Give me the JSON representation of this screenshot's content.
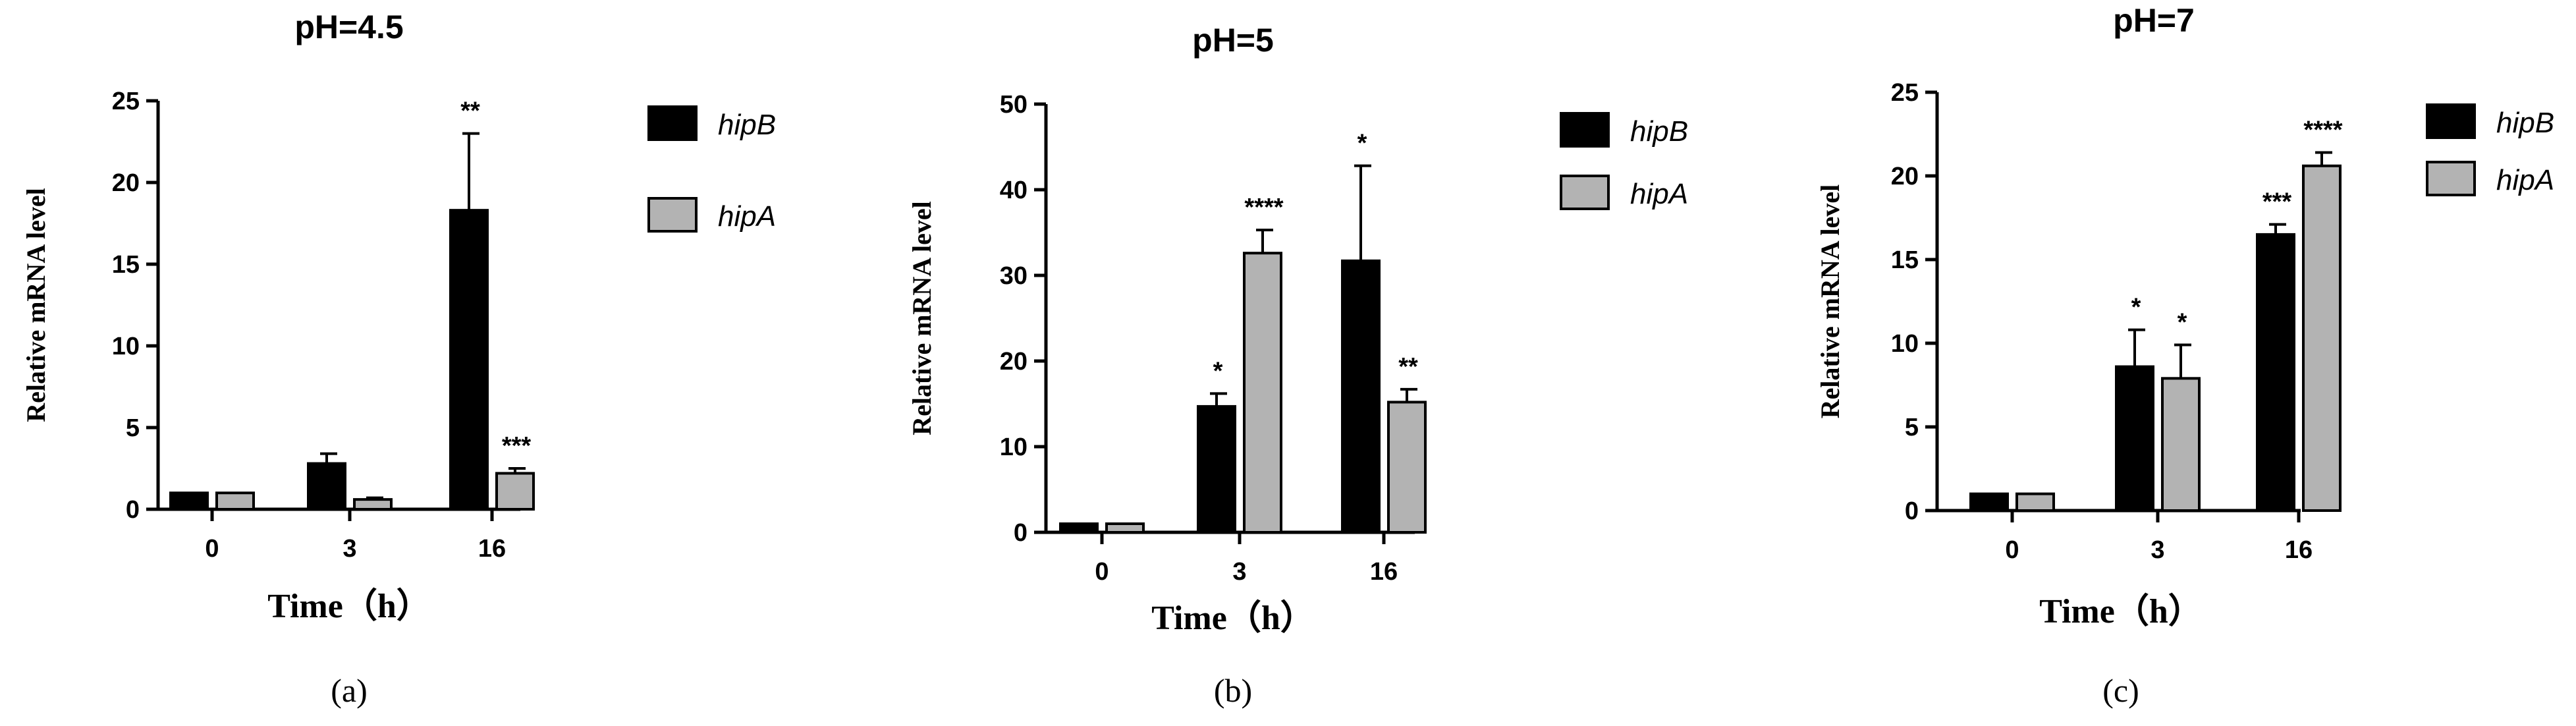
{
  "colors": {
    "hipB": "#000000",
    "hipA": "#b3b3b3",
    "axis": "#000000"
  },
  "chart_data": [
    {
      "type": "bar",
      "caption": "(a)",
      "title": "pH=4.5",
      "xlabel": "Time（h）",
      "ylabel": "Relative mRNA level",
      "categories": [
        "0",
        "3",
        "16"
      ],
      "ylim": [
        0,
        25
      ],
      "yticks": [
        "0",
        "5",
        "10",
        "15",
        "20",
        "25"
      ],
      "legend_position": "right",
      "series": [
        {
          "name": "hipB",
          "color": "#000000",
          "values": [
            1.0,
            2.8,
            18.3
          ],
          "errors": [
            0.0,
            0.6,
            4.7
          ],
          "significance": [
            "",
            "",
            "**"
          ]
        },
        {
          "name": "hipA",
          "color": "#b3b3b3",
          "values": [
            1.0,
            0.6,
            2.2
          ],
          "errors": [
            0.0,
            0.1,
            0.3
          ],
          "significance": [
            "",
            "",
            "***"
          ]
        }
      ]
    },
    {
      "type": "bar",
      "caption": "(b)",
      "title": "pH=5",
      "xlabel": "Time（h）",
      "ylabel": "Relative mRNA level",
      "categories": [
        "0",
        "3",
        "16"
      ],
      "ylim": [
        0,
        50
      ],
      "yticks": [
        "0",
        "10",
        "20",
        "30",
        "40",
        "50"
      ],
      "legend_position": "right",
      "series": [
        {
          "name": "hipB",
          "color": "#000000",
          "values": [
            1.0,
            14.7,
            31.7
          ],
          "errors": [
            0.0,
            1.5,
            11.1
          ],
          "significance": [
            "",
            "*",
            "*"
          ]
        },
        {
          "name": "hipA",
          "color": "#b3b3b3",
          "values": [
            1.0,
            32.6,
            15.2
          ],
          "errors": [
            0.0,
            2.7,
            1.5
          ],
          "significance": [
            "",
            "****",
            "**"
          ]
        }
      ]
    },
    {
      "type": "bar",
      "caption": "(c)",
      "title": "pH=7",
      "xlabel": "Time（h）",
      "ylabel": "Relative mRNA level",
      "categories": [
        "0",
        "3",
        "16"
      ],
      "ylim": [
        0,
        25
      ],
      "yticks": [
        "0",
        "5",
        "10",
        "15",
        "20",
        "25"
      ],
      "legend_position": "right",
      "series": [
        {
          "name": "hipB",
          "color": "#000000",
          "values": [
            1.0,
            8.6,
            16.5
          ],
          "errors": [
            0.0,
            2.2,
            0.6
          ],
          "significance": [
            "",
            "*",
            "***"
          ]
        },
        {
          "name": "hipA",
          "color": "#b3b3b3",
          "values": [
            1.0,
            7.9,
            20.6
          ],
          "errors": [
            0.0,
            2.0,
            0.8
          ],
          "significance": [
            "",
            "*",
            "****"
          ]
        }
      ]
    }
  ]
}
